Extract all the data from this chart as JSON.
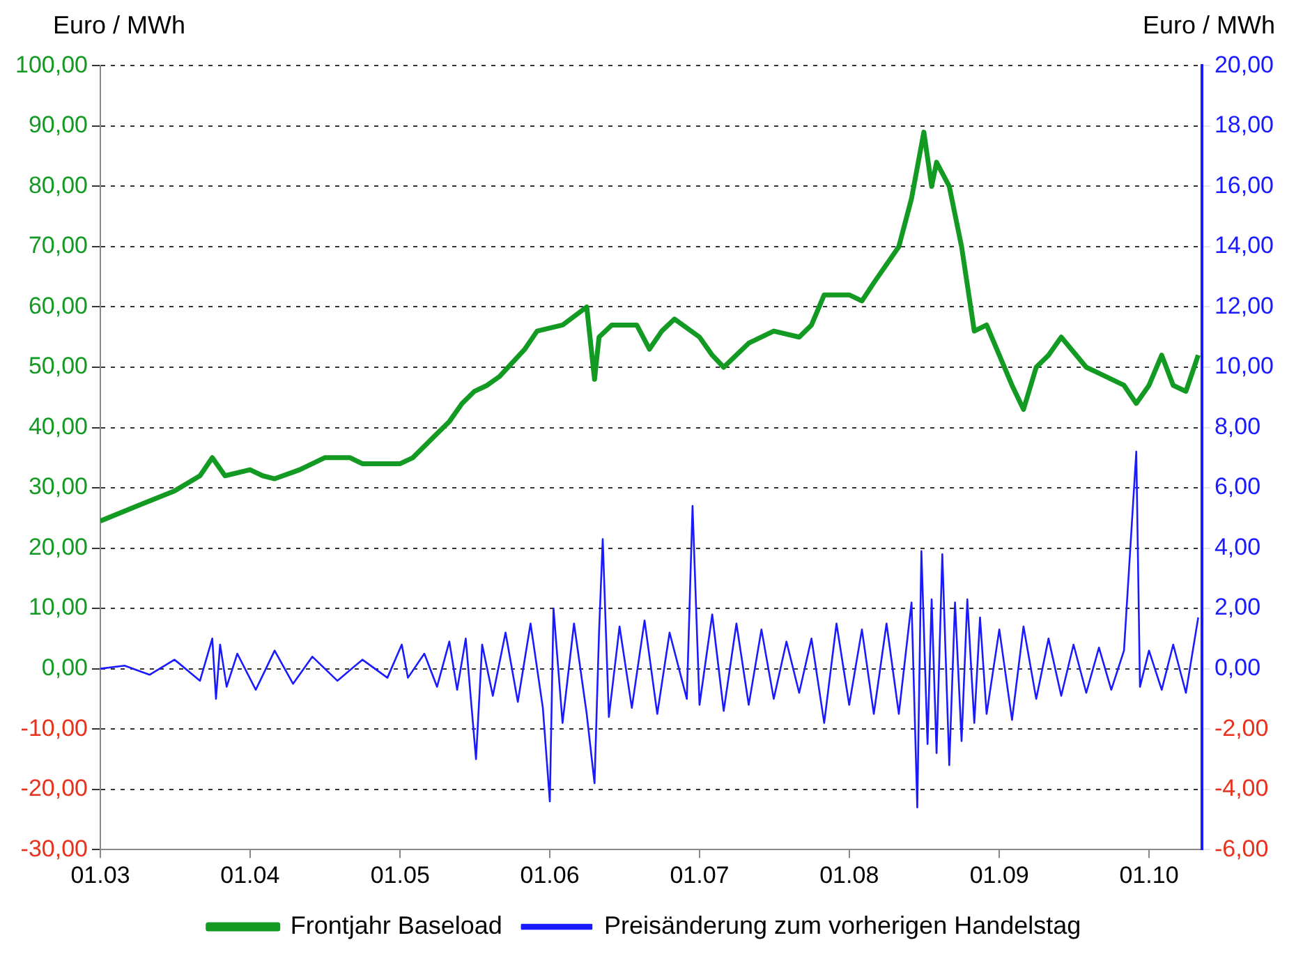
{
  "chart_data": {
    "type": "line",
    "xlabel": null,
    "ylabel": "Euro / MWh",
    "y2label": "Euro / MWh",
    "xlim": [
      "2003-01-01",
      "2010-05-10"
    ],
    "xticks": [
      {
        "value": "2003-01-01",
        "label": "01.03"
      },
      {
        "value": "2004-01-01",
        "label": "01.04"
      },
      {
        "value": "2005-01-01",
        "label": "01.05"
      },
      {
        "value": "2006-01-01",
        "label": "01.06"
      },
      {
        "value": "2007-01-01",
        "label": "01.07"
      },
      {
        "value": "2008-01-01",
        "label": "01.08"
      },
      {
        "value": "2009-01-01",
        "label": "01.09"
      },
      {
        "value": "2010-01-01",
        "label": "01.10"
      }
    ],
    "ylim": [
      -30,
      100
    ],
    "yticks": [
      {
        "value": -30,
        "label": "-30,00"
      },
      {
        "value": -20,
        "label": "-20,00"
      },
      {
        "value": -10,
        "label": "-10,00"
      },
      {
        "value": 0,
        "label": "0,00"
      },
      {
        "value": 10,
        "label": "10,00"
      },
      {
        "value": 20,
        "label": "20,00"
      },
      {
        "value": 30,
        "label": "30,00"
      },
      {
        "value": 40,
        "label": "40,00"
      },
      {
        "value": 50,
        "label": "50,00"
      },
      {
        "value": 60,
        "label": "60,00"
      },
      {
        "value": 70,
        "label": "70,00"
      },
      {
        "value": 80,
        "label": "80,00"
      },
      {
        "value": 90,
        "label": "90,00"
      },
      {
        "value": 100,
        "label": "100,00"
      }
    ],
    "y2lim": [
      -6,
      20
    ],
    "y2ticks": [
      {
        "value": -6,
        "label": "-6,00"
      },
      {
        "value": -4,
        "label": "-4,00"
      },
      {
        "value": -2,
        "label": "-2,00"
      },
      {
        "value": 0,
        "label": "0,00"
      },
      {
        "value": 2,
        "label": "2,00"
      },
      {
        "value": 4,
        "label": "4,00"
      },
      {
        "value": 6,
        "label": "6,00"
      },
      {
        "value": 8,
        "label": "8,00"
      },
      {
        "value": 10,
        "label": "10,00"
      },
      {
        "value": 12,
        "label": "12,00"
      },
      {
        "value": 14,
        "label": "14,00"
      },
      {
        "value": 16,
        "label": "16,00"
      },
      {
        "value": 18,
        "label": "18,00"
      },
      {
        "value": 20,
        "label": "20,00"
      }
    ],
    "grid": "y",
    "legend": "bottom",
    "marker": "none",
    "line_style": "solid",
    "series": [
      {
        "name": "Frontjahr Baseload",
        "color": "#129a22",
        "x": [
          "2003-01-01",
          "2003-04-01",
          "2003-07-01",
          "2003-09-01",
          "2003-10-01",
          "2003-11-01",
          "2004-01-01",
          "2004-02-01",
          "2004-03-01",
          "2004-05-01",
          "2004-07-01",
          "2004-09-01",
          "2004-10-01",
          "2005-01-01",
          "2005-02-01",
          "2005-04-01",
          "2005-05-01",
          "2005-06-01",
          "2005-07-01",
          "2005-08-01",
          "2005-09-01",
          "2005-11-01",
          "2005-12-01",
          "2006-02-01",
          "2006-04-01",
          "2006-04-20",
          "2006-05-01",
          "2006-06-01",
          "2006-08-01",
          "2006-09-01",
          "2006-10-01",
          "2006-11-01",
          "2007-01-01",
          "2007-02-01",
          "2007-03-01",
          "2007-05-01",
          "2007-07-01",
          "2007-09-01",
          "2007-10-01",
          "2007-11-01",
          "2008-01-01",
          "2008-02-01",
          "2008-03-01",
          "2008-05-01",
          "2008-06-01",
          "2008-07-01",
          "2008-07-20",
          "2008-08-01",
          "2008-09-01",
          "2008-10-01",
          "2008-11-01",
          "2008-12-01",
          "2009-01-01",
          "2009-02-01",
          "2009-03-01",
          "2009-04-01",
          "2009-05-01",
          "2009-06-01",
          "2009-08-01",
          "2009-09-01",
          "2009-11-01",
          "2009-12-01",
          "2010-01-01",
          "2010-02-01",
          "2010-03-01",
          "2010-04-01",
          "2010-05-01"
        ],
        "values": [
          24.5,
          27,
          29.5,
          32,
          35,
          32,
          33,
          32,
          31.5,
          33,
          35,
          35,
          34,
          34,
          35,
          39,
          41,
          44,
          46,
          47,
          48.5,
          53,
          56,
          57,
          60,
          48,
          55,
          57,
          57,
          53,
          56,
          58,
          55,
          52,
          50,
          54,
          56,
          55,
          57,
          62,
          62,
          61,
          64,
          70,
          78,
          89,
          80,
          84,
          80,
          70,
          56,
          57,
          52,
          47,
          43,
          50,
          52,
          55,
          50,
          49,
          47,
          44,
          47,
          52,
          47,
          46,
          52
        ]
      },
      {
        "name": "Preisänderung zum vorherigen Handelstag",
        "color": "#1a1aff",
        "axis": "y2",
        "x": [
          "2003-01-01",
          "2003-03-01",
          "2003-05-01",
          "2003-07-01",
          "2003-09-01",
          "2003-10-01",
          "2003-10-10",
          "2003-10-20",
          "2003-11-05",
          "2003-12-01",
          "2004-01-15",
          "2004-03-01",
          "2004-04-15",
          "2004-06-01",
          "2004-08-01",
          "2004-10-01",
          "2004-12-01",
          "2005-01-05",
          "2005-01-20",
          "2005-03-01",
          "2005-04-01",
          "2005-05-01",
          "2005-05-20",
          "2005-06-10",
          "2005-07-05",
          "2005-07-20",
          "2005-08-15",
          "2005-09-15",
          "2005-10-15",
          "2005-11-15",
          "2005-12-15",
          "2006-01-01",
          "2006-01-10",
          "2006-02-01",
          "2006-03-01",
          "2006-04-01",
          "2006-04-20",
          "2006-05-01",
          "2006-05-10",
          "2006-05-25",
          "2006-06-20",
          "2006-07-20",
          "2006-08-20",
          "2006-09-20",
          "2006-10-20",
          "2006-12-01",
          "2006-12-15",
          "2007-01-01",
          "2007-02-01",
          "2007-03-01",
          "2007-04-01",
          "2007-05-01",
          "2007-06-01",
          "2007-07-01",
          "2007-08-01",
          "2007-09-01",
          "2007-10-01",
          "2007-11-01",
          "2007-12-01",
          "2008-01-01",
          "2008-02-01",
          "2008-03-01",
          "2008-04-01",
          "2008-05-01",
          "2008-06-01",
          "2008-06-15",
          "2008-06-25",
          "2008-07-10",
          "2008-07-20",
          "2008-08-01",
          "2008-08-15",
          "2008-09-01",
          "2008-09-15",
          "2008-10-01",
          "2008-10-15",
          "2008-11-01",
          "2008-11-15",
          "2008-12-01",
          "2009-01-01",
          "2009-02-01",
          "2009-03-01",
          "2009-04-01",
          "2009-05-01",
          "2009-06-01",
          "2009-07-01",
          "2009-08-01",
          "2009-09-01",
          "2009-10-01",
          "2009-11-01",
          "2009-12-01",
          "2009-12-10",
          "2010-01-01",
          "2010-02-01",
          "2010-03-01",
          "2010-04-01",
          "2010-05-01"
        ],
        "values": [
          0,
          0.1,
          -0.2,
          0.3,
          -0.4,
          1.0,
          -1.0,
          0.8,
          -0.6,
          0.5,
          -0.7,
          0.6,
          -0.5,
          0.4,
          -0.4,
          0.3,
          -0.3,
          0.8,
          -0.3,
          0.5,
          -0.6,
          0.9,
          -0.7,
          1.0,
          -3.0,
          0.8,
          -0.9,
          1.2,
          -1.1,
          1.5,
          -1.3,
          -4.4,
          2.0,
          -1.8,
          1.5,
          -1.5,
          -3.8,
          1.2,
          4.3,
          -1.6,
          1.4,
          -1.3,
          1.6,
          -1.5,
          1.2,
          -1.0,
          5.4,
          -1.2,
          1.8,
          -1.4,
          1.5,
          -1.2,
          1.3,
          -1.0,
          0.9,
          -0.8,
          1.0,
          -1.8,
          1.5,
          -1.2,
          1.3,
          -1.5,
          1.5,
          -1.5,
          2.2,
          -4.6,
          3.9,
          -2.5,
          2.3,
          -2.8,
          3.8,
          -3.2,
          2.2,
          -2.4,
          2.3,
          -1.8,
          1.7,
          -1.5,
          1.3,
          -1.7,
          1.4,
          -1.0,
          1.0,
          -0.9,
          0.8,
          -0.8,
          0.7,
          -0.7,
          0.6,
          7.2,
          -0.6,
          0.6,
          -0.7,
          0.8,
          -0.8,
          1.7
        ]
      }
    ]
  }
}
